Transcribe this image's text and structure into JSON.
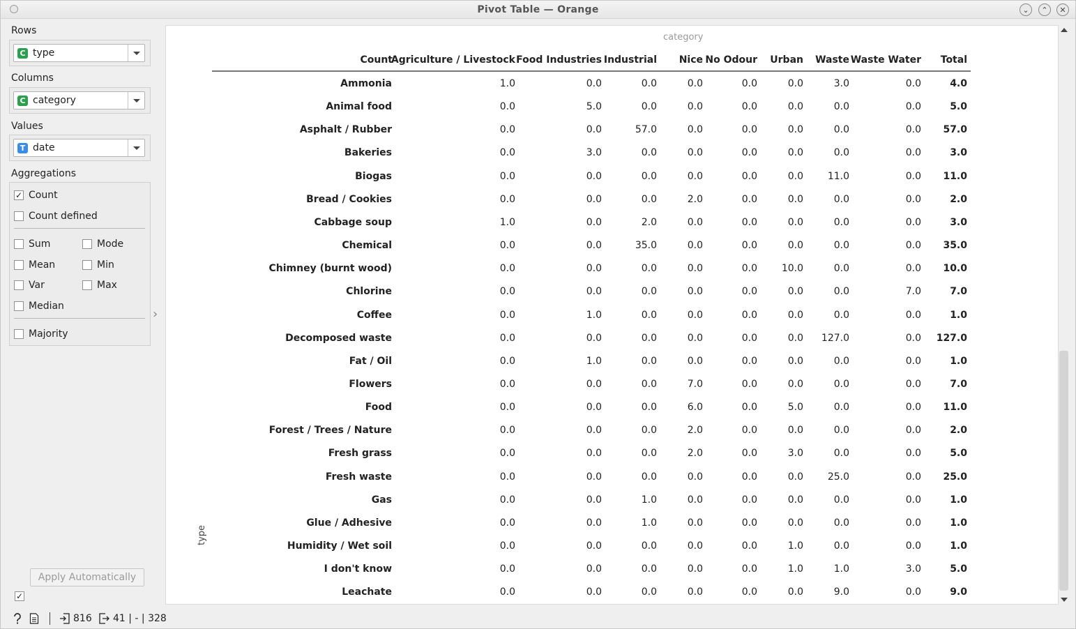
{
  "window": {
    "title": "Pivot Table — Orange"
  },
  "controls": {
    "rows_label": "Rows",
    "rows_value": "type",
    "rows_badge": "C",
    "columns_label": "Columns",
    "columns_value": "category",
    "columns_badge": "C",
    "values_label": "Values",
    "values_value": "date",
    "values_badge": "T",
    "aggregations_label": "Aggregations",
    "aggregations": {
      "count": {
        "label": "Count",
        "checked": true
      },
      "count_defined": {
        "label": "Count defined",
        "checked": false
      },
      "sum": {
        "label": "Sum",
        "checked": false
      },
      "mode": {
        "label": "Mode",
        "checked": false
      },
      "mean": {
        "label": "Mean",
        "checked": false
      },
      "min": {
        "label": "Min",
        "checked": false
      },
      "var": {
        "label": "Var",
        "checked": false
      },
      "max": {
        "label": "Max",
        "checked": false
      },
      "median": {
        "label": "Median",
        "checked": false
      },
      "majority": {
        "label": "Majority",
        "checked": false
      }
    },
    "apply_label": "Apply Automatically",
    "apply_checked": true
  },
  "colors": {
    "discrete_badge": "#2e9e4f",
    "text_badge": "#3a8de0"
  },
  "table": {
    "column_axis_label": "category",
    "row_axis_label": "type",
    "corner_label": "Count",
    "columns": [
      "Agriculture / Livestock",
      "Food Industries",
      "Industrial",
      "Nice",
      "No Odour",
      "Urban",
      "Waste",
      "Waste Water",
      "Total"
    ],
    "rows": [
      {
        "label": "Ammonia",
        "values": [
          "1.0",
          "0.0",
          "0.0",
          "0.0",
          "0.0",
          "0.0",
          "3.0",
          "0.0",
          "4.0"
        ]
      },
      {
        "label": "Animal food",
        "values": [
          "0.0",
          "5.0",
          "0.0",
          "0.0",
          "0.0",
          "0.0",
          "0.0",
          "0.0",
          "5.0"
        ]
      },
      {
        "label": "Asphalt / Rubber",
        "values": [
          "0.0",
          "0.0",
          "57.0",
          "0.0",
          "0.0",
          "0.0",
          "0.0",
          "0.0",
          "57.0"
        ]
      },
      {
        "label": "Bakeries",
        "values": [
          "0.0",
          "3.0",
          "0.0",
          "0.0",
          "0.0",
          "0.0",
          "0.0",
          "0.0",
          "3.0"
        ]
      },
      {
        "label": "Biogas",
        "values": [
          "0.0",
          "0.0",
          "0.0",
          "0.0",
          "0.0",
          "0.0",
          "11.0",
          "0.0",
          "11.0"
        ]
      },
      {
        "label": "Bread / Cookies",
        "values": [
          "0.0",
          "0.0",
          "0.0",
          "2.0",
          "0.0",
          "0.0",
          "0.0",
          "0.0",
          "2.0"
        ]
      },
      {
        "label": "Cabbage soup",
        "values": [
          "1.0",
          "0.0",
          "2.0",
          "0.0",
          "0.0",
          "0.0",
          "0.0",
          "0.0",
          "3.0"
        ]
      },
      {
        "label": "Chemical",
        "values": [
          "0.0",
          "0.0",
          "35.0",
          "0.0",
          "0.0",
          "0.0",
          "0.0",
          "0.0",
          "35.0"
        ]
      },
      {
        "label": "Chimney (burnt wood)",
        "values": [
          "0.0",
          "0.0",
          "0.0",
          "0.0",
          "0.0",
          "10.0",
          "0.0",
          "0.0",
          "10.0"
        ]
      },
      {
        "label": "Chlorine",
        "values": [
          "0.0",
          "0.0",
          "0.0",
          "0.0",
          "0.0",
          "0.0",
          "0.0",
          "7.0",
          "7.0"
        ]
      },
      {
        "label": "Coffee",
        "values": [
          "0.0",
          "1.0",
          "0.0",
          "0.0",
          "0.0",
          "0.0",
          "0.0",
          "0.0",
          "1.0"
        ]
      },
      {
        "label": "Decomposed waste",
        "values": [
          "0.0",
          "0.0",
          "0.0",
          "0.0",
          "0.0",
          "0.0",
          "127.0",
          "0.0",
          "127.0"
        ]
      },
      {
        "label": "Fat / Oil",
        "values": [
          "0.0",
          "1.0",
          "0.0",
          "0.0",
          "0.0",
          "0.0",
          "0.0",
          "0.0",
          "1.0"
        ]
      },
      {
        "label": "Flowers",
        "values": [
          "0.0",
          "0.0",
          "0.0",
          "7.0",
          "0.0",
          "0.0",
          "0.0",
          "0.0",
          "7.0"
        ]
      },
      {
        "label": "Food",
        "values": [
          "0.0",
          "0.0",
          "0.0",
          "6.0",
          "0.0",
          "5.0",
          "0.0",
          "0.0",
          "11.0"
        ]
      },
      {
        "label": "Forest / Trees / Nature",
        "values": [
          "0.0",
          "0.0",
          "0.0",
          "2.0",
          "0.0",
          "0.0",
          "0.0",
          "0.0",
          "2.0"
        ]
      },
      {
        "label": "Fresh grass",
        "values": [
          "0.0",
          "0.0",
          "0.0",
          "2.0",
          "0.0",
          "3.0",
          "0.0",
          "0.0",
          "5.0"
        ]
      },
      {
        "label": "Fresh waste",
        "values": [
          "0.0",
          "0.0",
          "0.0",
          "0.0",
          "0.0",
          "0.0",
          "25.0",
          "0.0",
          "25.0"
        ]
      },
      {
        "label": "Gas",
        "values": [
          "0.0",
          "0.0",
          "1.0",
          "0.0",
          "0.0",
          "0.0",
          "0.0",
          "0.0",
          "1.0"
        ]
      },
      {
        "label": "Glue / Adhesive",
        "values": [
          "0.0",
          "0.0",
          "1.0",
          "0.0",
          "0.0",
          "0.0",
          "0.0",
          "0.0",
          "1.0"
        ]
      },
      {
        "label": "Humidity / Wet soil",
        "values": [
          "0.0",
          "0.0",
          "0.0",
          "0.0",
          "0.0",
          "1.0",
          "0.0",
          "0.0",
          "1.0"
        ]
      },
      {
        "label": "I don't know",
        "values": [
          "0.0",
          "0.0",
          "0.0",
          "0.0",
          "0.0",
          "1.0",
          "1.0",
          "3.0",
          "5.0"
        ]
      },
      {
        "label": "Leachate",
        "values": [
          "0.0",
          "0.0",
          "0.0",
          "0.0",
          "0.0",
          "0.0",
          "9.0",
          "0.0",
          "9.0"
        ]
      }
    ]
  },
  "status": {
    "input_count": "816",
    "output_count": "41 | - | 328",
    "help_icon": "help-icon",
    "report_icon": "report-icon"
  }
}
